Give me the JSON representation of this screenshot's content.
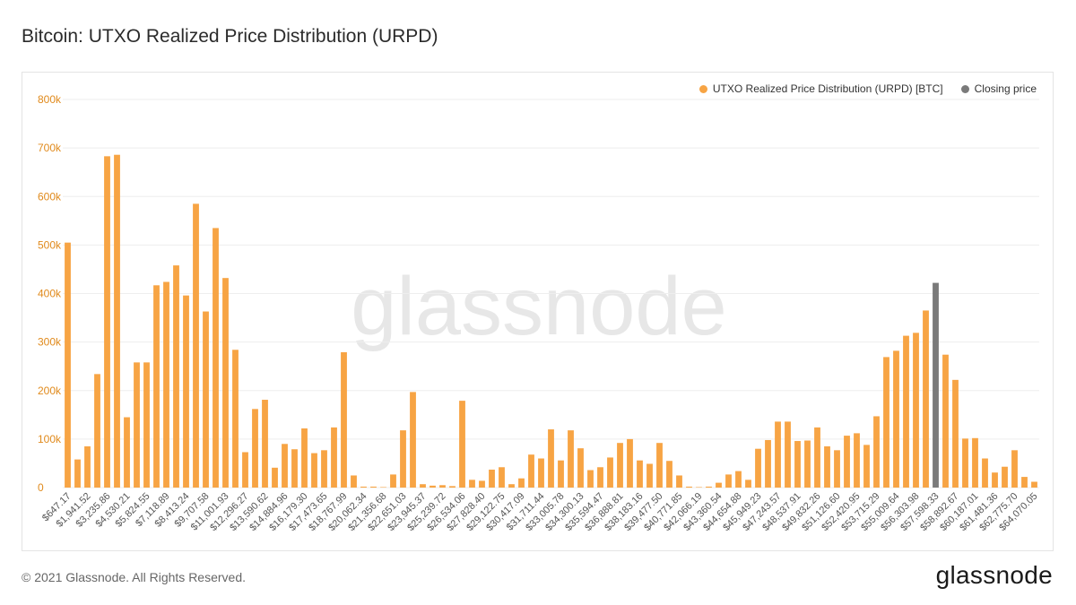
{
  "page": {
    "title": "Bitcoin: UTXO Realized Price Distribution (URPD)",
    "copyright": "© 2021 Glassnode. All Rights Reserved.",
    "logo_text": "glassnode",
    "watermark_text": "glassnode"
  },
  "colors": {
    "bar": "#f7a444",
    "closing_bar": "#7a7a7a",
    "axis_text": "#e08a1c",
    "grid": "#eeeeee",
    "xlabel": "#555555",
    "watermark": "#e7e7e7"
  },
  "legend": {
    "series_label": "UTXO Realized Price Distribution (URPD) [BTC]",
    "closing_label": "Closing price"
  },
  "chart_data": {
    "type": "bar",
    "ylim": [
      0,
      800000
    ],
    "y_ticks": [
      0,
      100000,
      200000,
      300000,
      400000,
      500000,
      600000,
      700000,
      800000
    ],
    "y_tick_labels": [
      "0",
      "100k",
      "200k",
      "300k",
      "400k",
      "500k",
      "600k",
      "700k",
      "800k"
    ],
    "x_tick_labels": [
      "$647.17",
      "$1,941.52",
      "$3,235.86",
      "$4,530.21",
      "$5,824.55",
      "$7,118.89",
      "$8,413.24",
      "$9,707.58",
      "$11,001.93",
      "$12,296.27",
      "$13,590.62",
      "$14,884.96",
      "$16,179.30",
      "$17,473.65",
      "$18,767.99",
      "$20,062.34",
      "$21,356.68",
      "$22,651.03",
      "$23,945.37",
      "$25,239.72",
      "$26,534.06",
      "$27,828.40",
      "$29,122.75",
      "$30,417.09",
      "$31,711.44",
      "$33,005.78",
      "$34,300.13",
      "$35,594.47",
      "$36,888.81",
      "$38,183.16",
      "$39,477.50",
      "$40,771.85",
      "$42,066.19",
      "$43,360.54",
      "$44,654.88",
      "$45,949.23",
      "$47,243.57",
      "$48,537.91",
      "$49,832.26",
      "$51,126.60",
      "$52,420.95",
      "$53,715.29",
      "$55,009.64",
      "$56,303.98",
      "$57,598.33",
      "$58,892.67",
      "$60,187.01",
      "$61,481.36",
      "$62,775.70",
      "$64,070.05"
    ],
    "closing_index": 88,
    "series": [
      {
        "name": "UTXO Realized Price Distribution (URPD) [BTC]",
        "values": [
          505000,
          58000,
          85000,
          234000,
          683000,
          686000,
          145000,
          258000,
          258000,
          417000,
          424000,
          458000,
          396000,
          585000,
          363000,
          535000,
          432000,
          284000,
          73000,
          162000,
          181000,
          41000,
          90000,
          79000,
          122000,
          71000,
          77000,
          124000,
          279000,
          25000,
          2000,
          2000,
          1000,
          27000,
          118000,
          197000,
          7000,
          4000,
          5000,
          3000,
          179000,
          16000,
          14000,
          37000,
          42000,
          7000,
          19000,
          68000,
          60000,
          120000,
          56000,
          118000,
          81000,
          36000,
          42000,
          62000,
          92000,
          100000,
          56000,
          49000,
          92000,
          55000,
          25000,
          2000,
          1000,
          2000,
          10000,
          27000,
          34000,
          16000,
          80000,
          98000,
          136000,
          136000,
          96000,
          97000,
          124000,
          85000,
          77000,
          107000,
          112000,
          88000,
          147000,
          269000,
          282000,
          313000,
          319000,
          365000,
          422000,
          274000,
          222000,
          101000,
          102000,
          60000,
          31000,
          43000,
          77000,
          22000,
          12000
        ]
      }
    ]
  }
}
